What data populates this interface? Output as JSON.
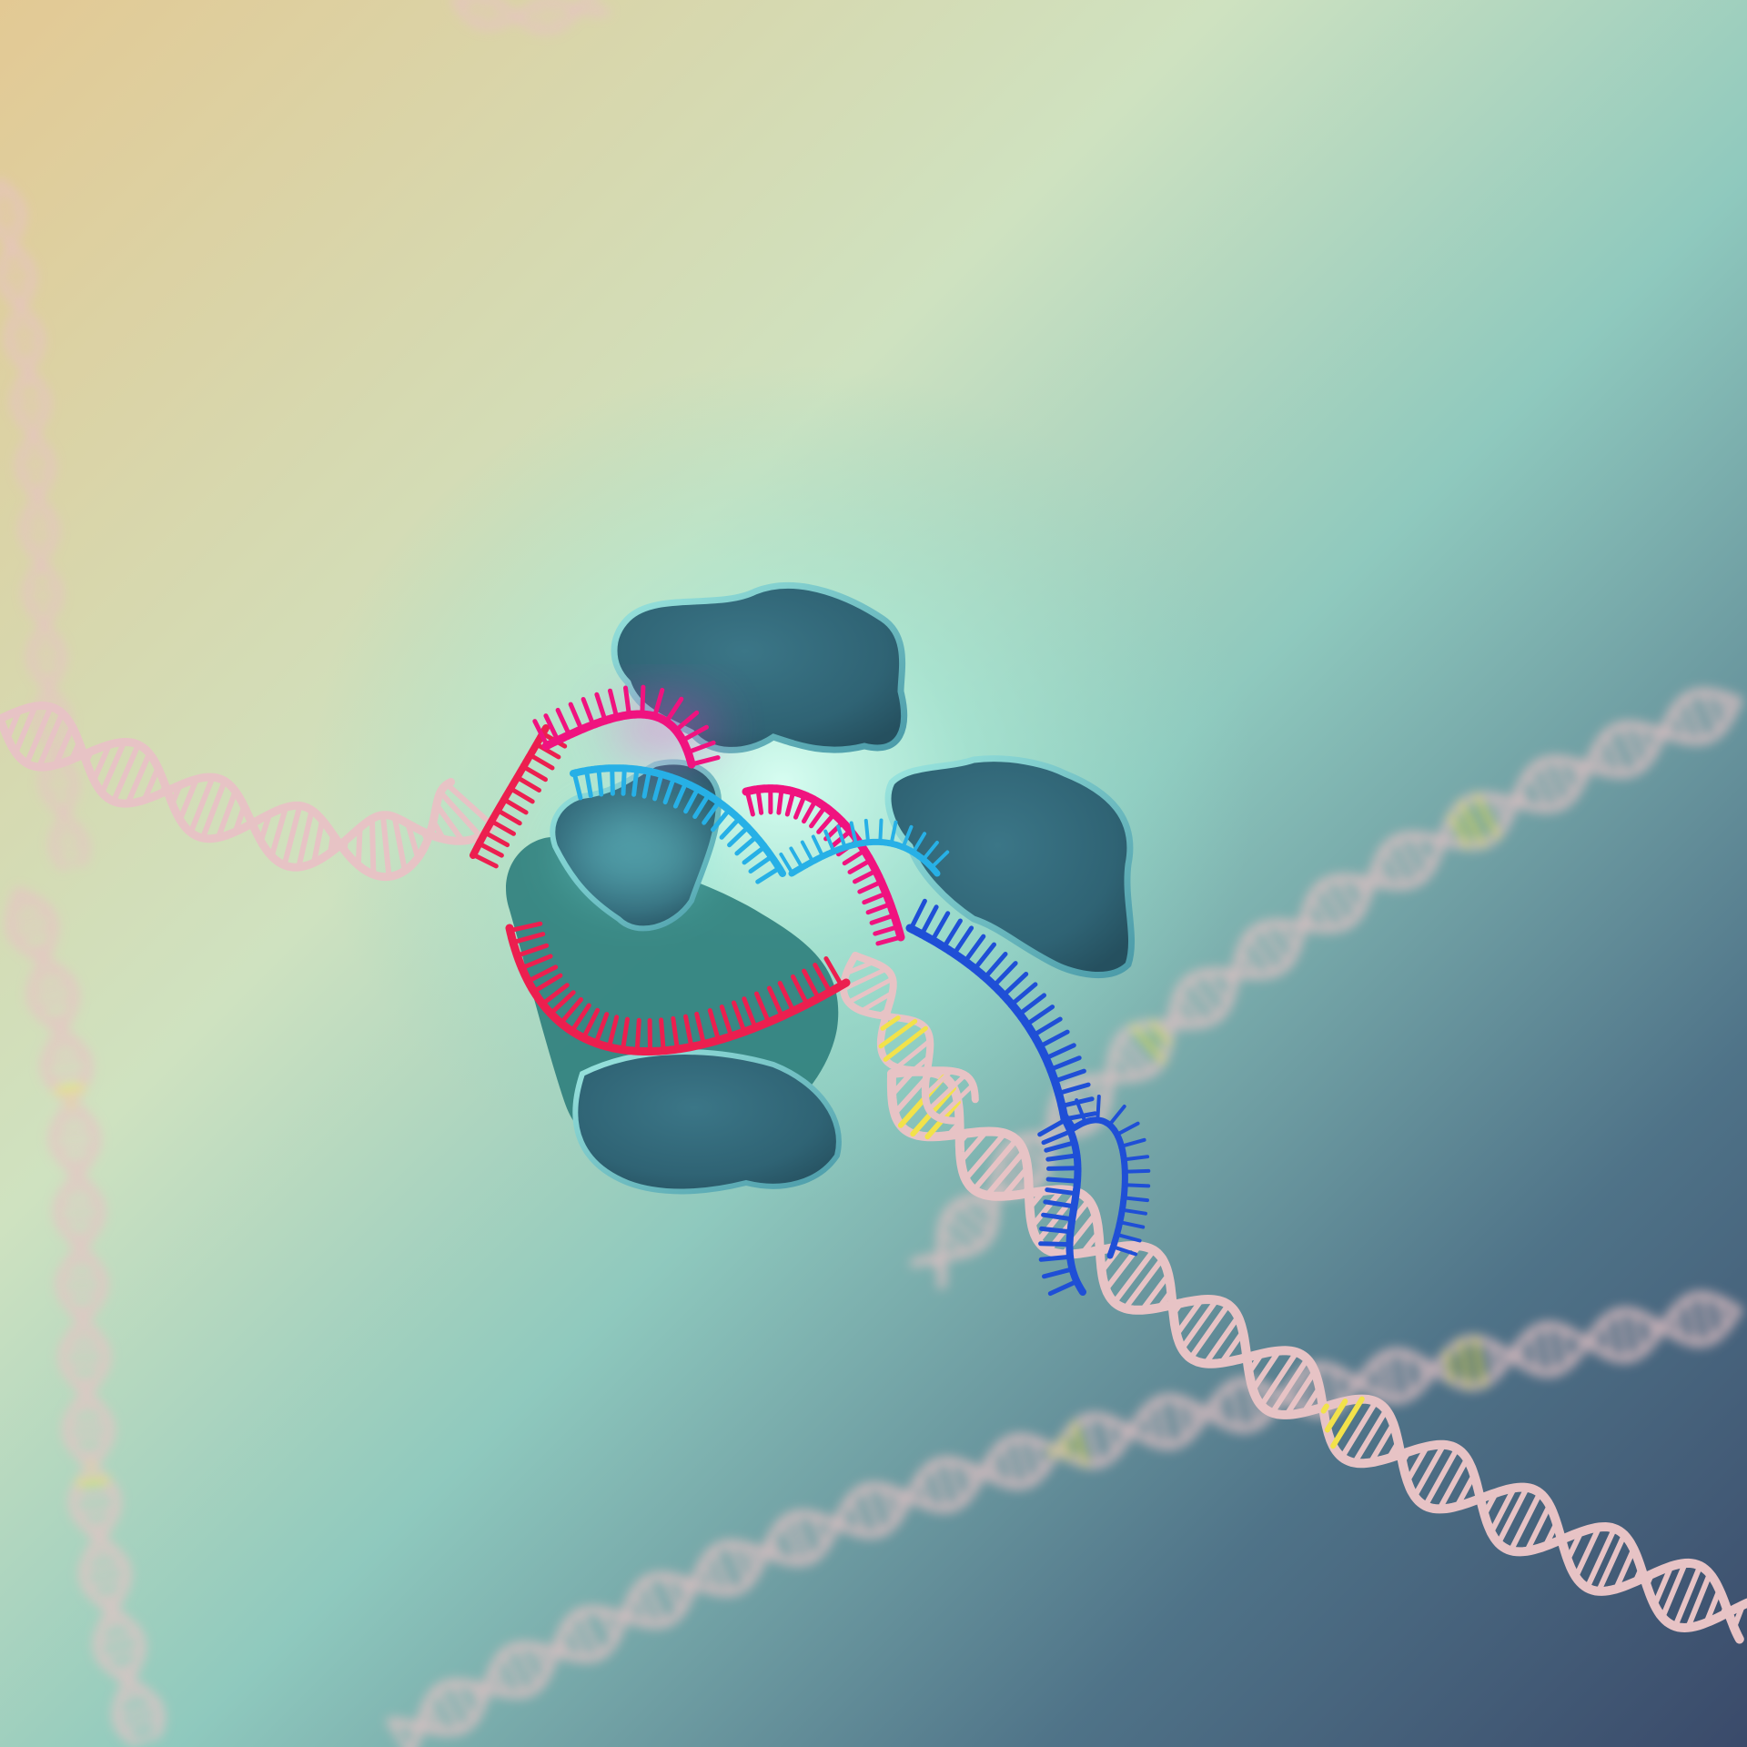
{
  "scene": {
    "subject": "dna-protein-complex-render",
    "colors": {
      "background_top_left": "#e3c994",
      "background_mid": "#a8dccb",
      "background_bottom_right": "#3a4a6a",
      "dna_backbone": "#e7c3c5",
      "dna_highlight_base": "#f2e24a",
      "protein_surface": "#2f6577",
      "protein_rim": "#5fb4be",
      "rna_strand_red": "#ec1f4f",
      "rna_strand_magenta": "#f0137f",
      "target_strand_cyan": "#27b0e6",
      "target_strand_blue": "#1f4fd6",
      "glow": "#c9fff0"
    }
  }
}
